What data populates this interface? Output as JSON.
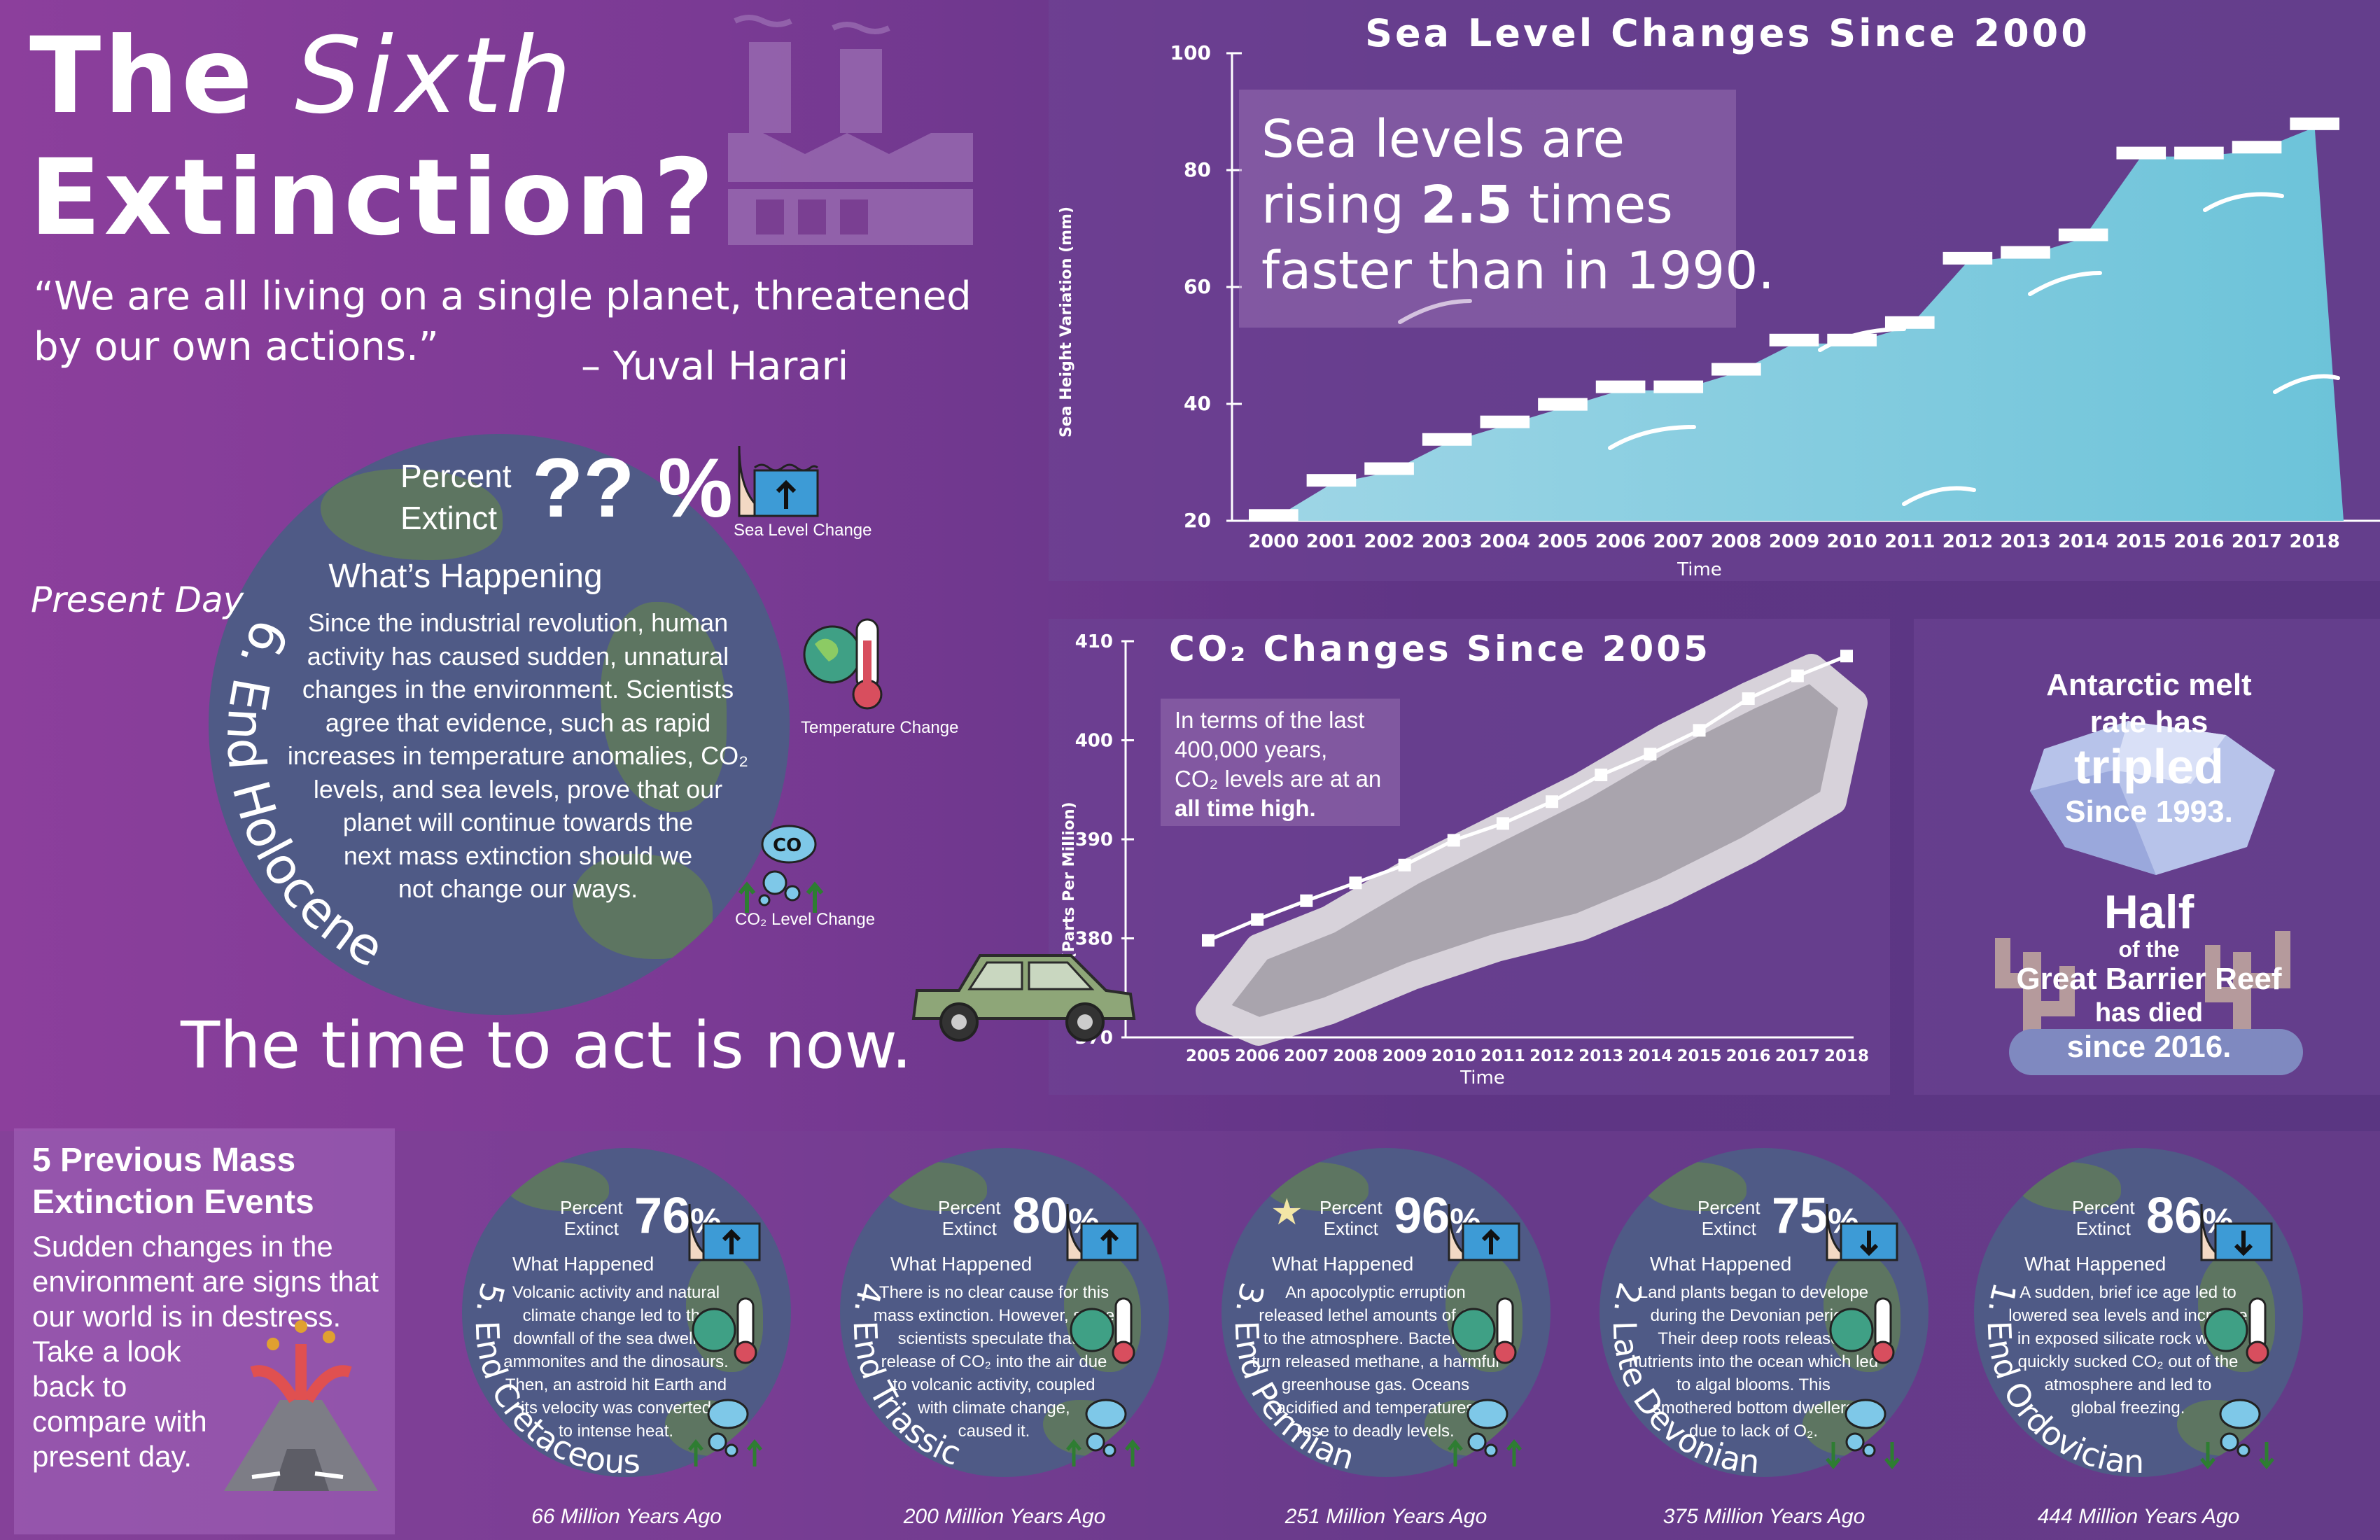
{
  "header": {
    "title_the": "The",
    "title_sixth": "Sixth",
    "title_extinction": "Extinction?",
    "quote_line1": "“We are all living on a single planet, threatened",
    "quote_line2": "by our own actions.”",
    "quote_author": "– Yuval Harari"
  },
  "present": {
    "label": "Present Day",
    "percent_label_1": "Percent",
    "percent_label_2": "Extinct",
    "percent_value": "?? %",
    "heading": "What’s Happening",
    "body_lines": [
      "Since the industrial revolution, human",
      "activity has caused sudden, unnatural",
      "changes in the environment. Scientists",
      "agree that evidence, such as rapid",
      "increases in temperature anomalies, CO₂",
      "levels, and sea levels, prove that our",
      "planet will continue towards the",
      "next mass extinction should we",
      "not change our ways."
    ],
    "arc_label": "6. End Holocene",
    "icon_sea": "Sea Level Change",
    "icon_temp": "Temperature Change",
    "icon_co2": "CO₂ Level Change",
    "call_to_action": "The time to act is now."
  },
  "sea_panel": {
    "callout_1": "Sea levels are",
    "callout_2a": "rising ",
    "callout_2b": "2.5",
    "callout_2c": " times",
    "callout_3": "faster than in 1990."
  },
  "co2_panel": {
    "note_1": "In terms of the last",
    "note_2": "400,000 years,",
    "note_3": "CO₂ levels are at an",
    "note_4": "all time high."
  },
  "side_panel": {
    "antarctic_1": "Antarctic melt",
    "antarctic_2": "rate has",
    "antarctic_3": "tripled",
    "antarctic_4": "Since 1993.",
    "reef_1": "Half",
    "reef_2": "of the",
    "reef_3": "Great Barrier Reef",
    "reef_4": "has died",
    "reef_5": "since 2016."
  },
  "previous": {
    "heading_1": "5 Previous Mass",
    "heading_2": "Extinction Events",
    "body_lines": [
      "Sudden changes in the",
      "environment are signs that",
      "our world is in destress.",
      "Take a look",
      "back to",
      "compare with",
      "present day."
    ],
    "events": [
      {
        "name": "5. End Cretaceous",
        "percent": "76",
        "when": "66 Million Years Ago",
        "sea": "up",
        "co2": "up",
        "star": false,
        "lines": [
          "Volcanic activity and natural",
          "climate change led to the",
          "downfall of the sea dwelling",
          "ammonites and the dinosaurs.",
          "Then, an astroid hit Earth and",
          "its velocity was converted",
          "to intense heat."
        ]
      },
      {
        "name": "4. End Triassic",
        "percent": "80",
        "when": "200 Million Years Ago",
        "sea": "up",
        "co2": "up",
        "star": false,
        "lines": [
          "There is no clear cause for this",
          "mass extinction. However, some",
          "scientists speculate that a",
          "release of CO₂ into the air due",
          "to volcanic activity, coupled",
          "with climate change,",
          "caused it."
        ]
      },
      {
        "name": "3. End Permian",
        "percent": "96",
        "when": "251 Million Years Ago",
        "sea": "up",
        "co2": "up",
        "star": true,
        "lines": [
          "An apocolyptic erruption",
          "released lethel amounts of CO₂",
          "to the atmosphere. Bacteria in",
          "turn released methane, a harmful",
          "greenhouse gas. Oceans",
          "acidified and temperatures",
          "rose to deadly levels."
        ]
      },
      {
        "name": "2. Late Devonian",
        "percent": "75",
        "when": "375 Million Years Ago",
        "sea": "down",
        "co2": "down",
        "star": false,
        "lines": [
          "Land plants began to develope",
          "during the Devonian period.",
          "Their deep roots released",
          "nutrients into the ocean which led",
          "to algal blooms. This",
          "smothered bottom dwellers",
          "due to lack of O₂."
        ]
      },
      {
        "name": "1. End Ordovician",
        "percent": "86",
        "when": "444 Million Years Ago",
        "sea": "down",
        "co2": "down",
        "star": false,
        "lines": [
          "A sudden, brief ice age led to",
          "lowered sea levels and increase",
          "in exposed silicate rock which",
          "quickly sucked CO₂ out of the",
          "atmosphere and led to",
          "global freezing."
        ]
      }
    ],
    "percent_label_1": "Percent",
    "percent_label_2": "Extinct",
    "what_happened": "What Happened",
    "pct_sign": "%"
  },
  "colors": {
    "water": "#6cc3d9",
    "water_dark": "#3aa0c8",
    "cloud": "#a9a4ad",
    "bar": "#ffffff",
    "earth": "#4f5a86",
    "land": "#5f7a5a"
  },
  "chart_data": [
    {
      "type": "bar",
      "title": "Sea Level Changes Since 2000",
      "xlabel": "Time",
      "ylabel": "Sea Height Variation (mm)",
      "ylim": [
        20,
        100
      ],
      "yticks": [
        20,
        40,
        60,
        80,
        100
      ],
      "categories": [
        "2000",
        "2001",
        "2002",
        "2003",
        "2004",
        "2005",
        "2006",
        "2007",
        "2008",
        "2009",
        "2010",
        "2011",
        "2012",
        "2013",
        "2014",
        "2015",
        "2016",
        "2017",
        "2018"
      ],
      "values": [
        22,
        28,
        30,
        35,
        38,
        41,
        44,
        44,
        47,
        52,
        52,
        55,
        66,
        67,
        70,
        84,
        84,
        85,
        89
      ]
    },
    {
      "type": "line",
      "title": "CO₂ Changes Since 2005",
      "xlabel": "Time",
      "ylabel": "CO₂ (Parts Per Million)",
      "ylim": [
        370,
        410
      ],
      "yticks": [
        370,
        380,
        390,
        400,
        410
      ],
      "categories": [
        "2005",
        "2006",
        "2007",
        "2008",
        "2009",
        "2010",
        "2011",
        "2012",
        "2013",
        "2014",
        "2015",
        "2016",
        "2017",
        "2018"
      ],
      "values": [
        379.8,
        381.9,
        383.8,
        385.6,
        387.4,
        389.9,
        391.6,
        393.8,
        396.5,
        398.6,
        401.0,
        404.2,
        406.5,
        408.5
      ]
    }
  ]
}
